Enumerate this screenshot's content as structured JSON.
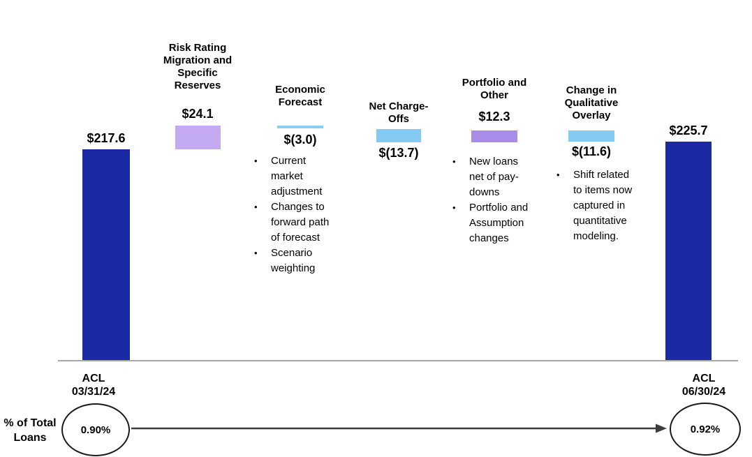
{
  "chart_data": {
    "type": "waterfall",
    "title": "",
    "currency_prefix": "$",
    "baseline": 0,
    "steps": [
      {
        "id": "acl-start",
        "role": "total",
        "label": "ACL 03/31/24",
        "label_lines": [
          "ACL",
          "03/31/24"
        ],
        "value": 217.6,
        "value_label": "$217.6",
        "color": "#1b2aa3"
      },
      {
        "id": "risk-rating-migration",
        "role": "increase",
        "label": "Risk Rating Migration and Specific Reserves",
        "label_lines": [
          "Risk Rating",
          "Migration and",
          "Specific",
          "Reserves"
        ],
        "value": 24.1,
        "value_label": "$24.1",
        "color": "#c3aaf1"
      },
      {
        "id": "economic-forecast",
        "role": "decrease",
        "label": "Economic Forecast",
        "label_lines": [
          "Economic",
          "Forecast"
        ],
        "value": -3.0,
        "value_label": "$(3.0)",
        "color": "#8ccdf3",
        "notes": [
          "Current market adjustment",
          "Changes to forward path of forecast",
          "Scenario weighting"
        ]
      },
      {
        "id": "net-charge-offs",
        "role": "decrease",
        "label": "Net Charge-Offs",
        "label_lines": [
          "Net Charge-",
          "Offs"
        ],
        "value": -13.7,
        "value_label": "$(13.7)",
        "color": "#85caf2"
      },
      {
        "id": "portfolio-and-other",
        "role": "increase",
        "label": "Portfolio and Other",
        "label_lines": [
          "Portfolio and",
          "Other"
        ],
        "value": 12.3,
        "value_label": "$12.3",
        "color": "#a98be8",
        "notes": [
          "New loans net of pay-downs",
          "Portfolio and Assumption changes"
        ]
      },
      {
        "id": "qualitative-overlay",
        "role": "decrease",
        "label": "Change in Qualitative Overlay",
        "label_lines": [
          "Change in",
          "Qualitative",
          "Overlay"
        ],
        "value": -11.6,
        "value_label": "$(11.6)",
        "color": "#85caf2",
        "notes": [
          "Shift related to items now captured in quantitative modeling."
        ]
      },
      {
        "id": "acl-end",
        "role": "total",
        "label": "ACL 06/30/24",
        "label_lines": [
          "ACL",
          "06/30/24"
        ],
        "value": 225.7,
        "value_label": "$225.7",
        "color": "#1b2aa3"
      }
    ]
  },
  "footer": {
    "metric_label_lines": [
      "% of Total",
      "Loans"
    ],
    "start_pct": "0.90%",
    "end_pct": "0.92%"
  },
  "icons": {
    "bullet": "•"
  },
  "colors": {
    "total_bar": "#1b2aa3",
    "increase_bar": "#c3aaf1",
    "decrease_bar": "#85caf2",
    "axis": "#a6a6a6",
    "arrow": "#3d3d3d"
  }
}
